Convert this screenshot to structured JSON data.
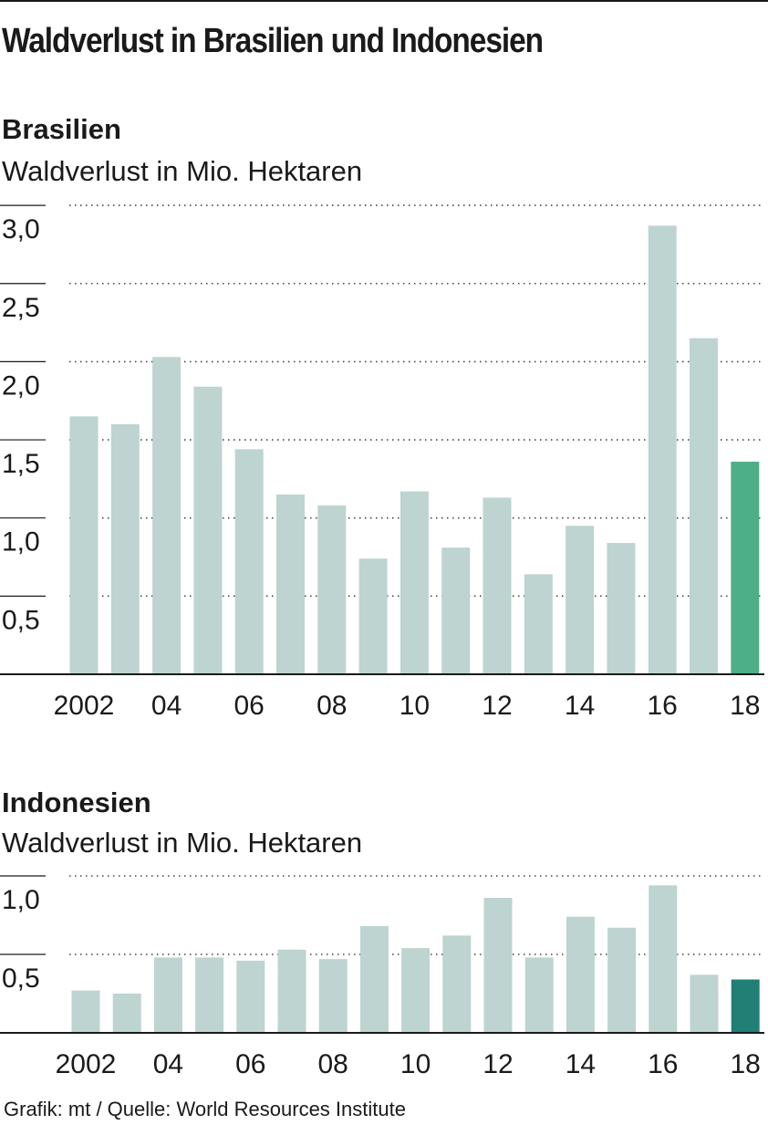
{
  "title": "Waldverlust in Brasilien und Indonesien",
  "source": "Grafik: mt / Quelle: World Resources Institute",
  "colors": {
    "bar": "#bdd4d0",
    "highlight_brazil": "#4caf87",
    "highlight_indonesia": "#217f76",
    "text": "#1a1a1a"
  },
  "charts": {
    "brazil": {
      "subtitle": "Brasilien",
      "unit": "Waldverlust in Mio. Hektaren"
    },
    "indonesia": {
      "subtitle": "Indonesien",
      "unit": "Waldverlust in Mio. Hektaren"
    }
  },
  "chart_data": [
    {
      "type": "bar",
      "title": "Brasilien",
      "ylabel": "Waldverlust in Mio. Hektaren",
      "x": [
        2002,
        2003,
        2004,
        2005,
        2006,
        2007,
        2008,
        2009,
        2010,
        2011,
        2012,
        2013,
        2014,
        2015,
        2016,
        2017,
        2018
      ],
      "x_tick_labels": [
        "2002",
        "04",
        "06",
        "08",
        "10",
        "12",
        "14",
        "16",
        "18"
      ],
      "x_tick_years": [
        2002,
        2004,
        2006,
        2008,
        2010,
        2012,
        2014,
        2016,
        2018
      ],
      "values": [
        1.65,
        1.6,
        2.03,
        1.84,
        1.44,
        1.15,
        1.08,
        0.74,
        1.17,
        0.81,
        1.13,
        0.64,
        0.95,
        0.84,
        2.87,
        2.15,
        1.36
      ],
      "highlight_index": 16,
      "yticks": [
        0.5,
        1.0,
        1.5,
        2.0,
        2.5,
        3.0
      ],
      "ytick_labels": [
        "0,5",
        "1,0",
        "1,5",
        "2,0",
        "2,5",
        "3,0"
      ],
      "ylim": [
        0,
        3.0
      ],
      "grid": true
    },
    {
      "type": "bar",
      "title": "Indonesien",
      "ylabel": "Waldverlust in Mio. Hektaren",
      "x": [
        2002,
        2003,
        2004,
        2005,
        2006,
        2007,
        2008,
        2009,
        2010,
        2011,
        2012,
        2013,
        2014,
        2015,
        2016,
        2017,
        2018
      ],
      "x_tick_labels": [
        "2002",
        "04",
        "06",
        "08",
        "10",
        "12",
        "14",
        "16",
        "18"
      ],
      "x_tick_years": [
        2002,
        2004,
        2006,
        2008,
        2010,
        2012,
        2014,
        2016,
        2018
      ],
      "values": [
        0.27,
        0.25,
        0.48,
        0.48,
        0.46,
        0.53,
        0.47,
        0.68,
        0.54,
        0.62,
        0.86,
        0.48,
        0.74,
        0.67,
        0.94,
        0.37,
        0.34
      ],
      "highlight_index": 16,
      "yticks": [
        0.5,
        1.0
      ],
      "ytick_labels": [
        "0,5",
        "1,0"
      ],
      "ylim": [
        0,
        1.0
      ],
      "grid": true
    }
  ]
}
